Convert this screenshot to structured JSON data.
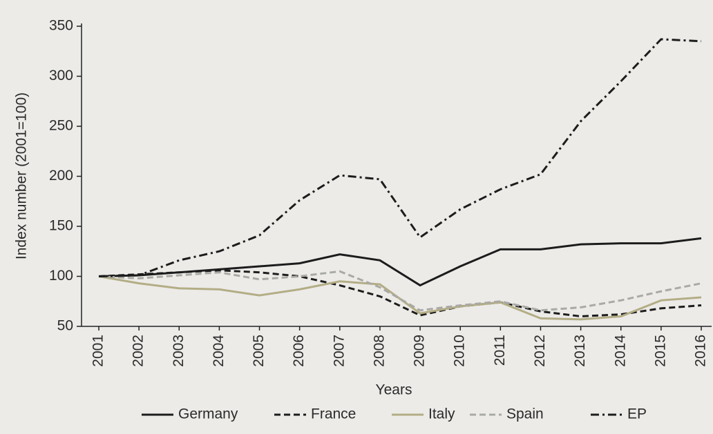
{
  "chart_data": {
    "type": "line",
    "y_label": "Index number (2001=100)",
    "x_label": "Years",
    "categories": [
      "2001",
      "2002",
      "2003",
      "2004",
      "2005",
      "2006",
      "2007",
      "2008",
      "2009",
      "2010",
      "2011",
      "2012",
      "2013",
      "2014",
      "2015",
      "2016"
    ],
    "ylim": [
      50,
      350
    ],
    "yticks": [
      50,
      100,
      150,
      200,
      250,
      300,
      350
    ],
    "series": [
      {
        "name": "Germany",
        "color": "#1c1c1c",
        "style": "solid",
        "values": [
          100,
          101,
          104,
          107,
          110,
          113,
          122,
          116,
          91,
          110,
          127,
          127,
          132,
          133,
          133,
          138
        ]
      },
      {
        "name": "France",
        "color": "#1c1c1c",
        "style": "dashed",
        "values": [
          100,
          102,
          104,
          106,
          104,
          100,
          91,
          80,
          61,
          70,
          74,
          65,
          60,
          62,
          68,
          71
        ]
      },
      {
        "name": "Italy",
        "color": "#b3ad85",
        "style": "solid",
        "values": [
          100,
          93,
          88,
          87,
          81,
          87,
          95,
          92,
          63,
          70,
          74,
          58,
          57,
          60,
          76,
          79
        ]
      },
      {
        "name": "Spain",
        "color": "#a9a9a5",
        "style": "dashed",
        "values": [
          100,
          98,
          101,
          104,
          97,
          100,
          105,
          89,
          66,
          71,
          75,
          66,
          69,
          76,
          85,
          93
        ]
      },
      {
        "name": "EP",
        "color": "#1c1c1c",
        "style": "dashdot",
        "values": [
          100,
          101,
          116,
          125,
          141,
          176,
          201,
          197,
          139,
          167,
          187,
          202,
          255,
          295,
          337,
          335
        ]
      }
    ]
  }
}
